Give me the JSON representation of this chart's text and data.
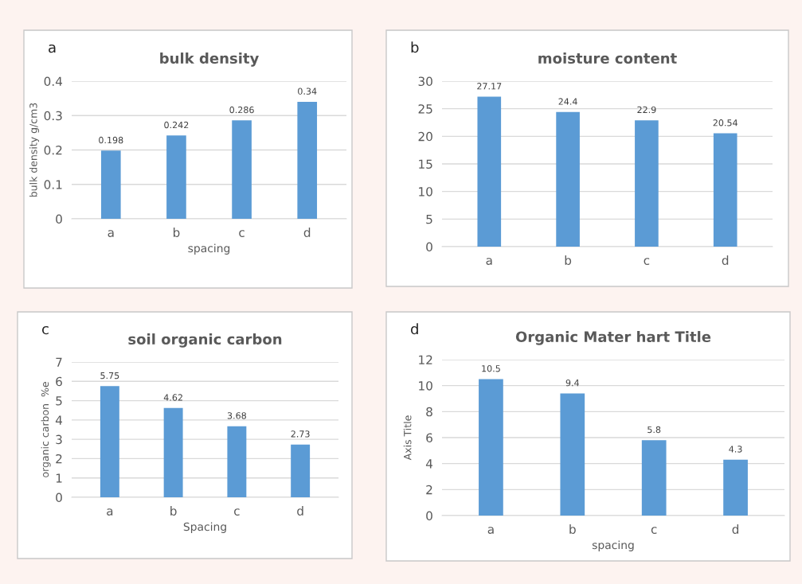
{
  "chart_data": [
    {
      "type": "bar",
      "title": "bulk density",
      "xlabel": "spacing",
      "ylabel": "bulk density g/cm3",
      "annotations": [
        "a"
      ],
      "categories": [
        "a",
        "b",
        "c",
        "d"
      ],
      "values": [
        0.198,
        0.242,
        0.286,
        0.34
      ],
      "color": "#5b9bd5",
      "ylim": [
        0,
        0.4
      ],
      "yticks": [
        {
          "value": 0,
          "label": "0"
        },
        0.1,
        0.2,
        0.3,
        0.4
      ],
      "grid": "y",
      "data_labels": true
    },
    {
      "type": "bar",
      "title": "moisture content",
      "annotations": [
        "b"
      ],
      "categories": [
        "a",
        "b",
        "c",
        "d"
      ],
      "values": [
        27.17,
        24.4,
        22.9,
        20.54
      ],
      "color": "#5b9bd5",
      "ylim": [
        0,
        30
      ],
      "yticks": [
        0,
        5,
        10,
        15,
        20,
        25,
        30
      ],
      "grid": "y",
      "data_labels": true
    },
    {
      "type": "bar",
      "title": "soil organic carbon",
      "xlabel": "Spacing",
      "ylabel": "organic carbon  %e",
      "annotations": [
        "c"
      ],
      "categories": [
        "a",
        "b",
        "c",
        "d"
      ],
      "values": [
        5.75,
        4.62,
        3.68,
        2.73
      ],
      "color": "#5b9bd5",
      "ylim": [
        0,
        7
      ],
      "yticks": [
        0,
        1,
        2,
        3,
        4,
        5,
        6,
        7
      ],
      "grid": "y",
      "data_labels": true
    },
    {
      "type": "bar",
      "title": "Organic Mater hart Title",
      "xlabel": "spacing",
      "ylabel": "Axis Title",
      "annotations": [
        "d"
      ],
      "categories": [
        "a",
        "b",
        "c",
        "d"
      ],
      "values": [
        10.5,
        9.4,
        5.8,
        4.3
      ],
      "color": "#5b9bd5",
      "ylim": [
        0,
        12
      ],
      "yticks": [
        0,
        2,
        4,
        6,
        8,
        10,
        12
      ],
      "grid": "y",
      "data_labels": true
    }
  ]
}
